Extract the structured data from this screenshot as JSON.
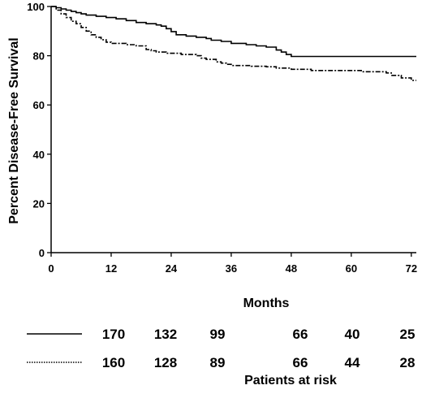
{
  "chart_data": {
    "type": "line",
    "title": "",
    "xlabel": "Months",
    "ylabel": "Percent Disease-Free Survival",
    "xlim": [
      0,
      73
    ],
    "ylim": [
      0,
      100
    ],
    "x_ticks": [
      "0",
      "12",
      "24",
      "36",
      "48",
      "60",
      "72"
    ],
    "y_ticks": [
      "0",
      "20",
      "40",
      "60",
      "80",
      "100"
    ],
    "series": [
      {
        "line_style": "solid",
        "color": "#000000",
        "step": true,
        "points": [
          [
            0,
            100
          ],
          [
            1,
            99.5
          ],
          [
            2,
            99
          ],
          [
            3,
            98.5
          ],
          [
            4,
            98
          ],
          [
            5,
            97.5
          ],
          [
            6,
            97
          ],
          [
            7,
            96.5
          ],
          [
            9,
            96
          ],
          [
            11,
            95.5
          ],
          [
            13,
            95
          ],
          [
            15,
            94.3
          ],
          [
            17,
            93.5
          ],
          [
            19,
            93
          ],
          [
            21,
            92.5
          ],
          [
            22,
            92
          ],
          [
            23,
            91
          ],
          [
            24,
            89.8
          ],
          [
            25,
            88.5
          ],
          [
            27,
            88
          ],
          [
            29,
            87.5
          ],
          [
            31,
            87
          ],
          [
            32,
            86.3
          ],
          [
            34,
            85.8
          ],
          [
            36,
            85
          ],
          [
            39,
            84.5
          ],
          [
            41,
            84
          ],
          [
            43,
            83.5
          ],
          [
            45,
            82.3
          ],
          [
            46,
            81.5
          ],
          [
            47,
            80.5
          ],
          [
            48,
            79.7
          ],
          [
            73,
            79.7
          ]
        ]
      },
      {
        "line_style": "dashed",
        "color": "#000000",
        "step": true,
        "points": [
          [
            0,
            100
          ],
          [
            1,
            98.5
          ],
          [
            2,
            97
          ],
          [
            3,
            95.5
          ],
          [
            4,
            94
          ],
          [
            5,
            93
          ],
          [
            6,
            91.5
          ],
          [
            7,
            90
          ],
          [
            8,
            88.5
          ],
          [
            9,
            87.5
          ],
          [
            10,
            86.5
          ],
          [
            11,
            85.5
          ],
          [
            12,
            85
          ],
          [
            15,
            84.5
          ],
          [
            17,
            84
          ],
          [
            19,
            82.5
          ],
          [
            20,
            82
          ],
          [
            21,
            81.5
          ],
          [
            23,
            81
          ],
          [
            26,
            80.5
          ],
          [
            29,
            80
          ],
          [
            30,
            79
          ],
          [
            31,
            78.5
          ],
          [
            33,
            77.5
          ],
          [
            34,
            77
          ],
          [
            35,
            76.5
          ],
          [
            36,
            76
          ],
          [
            40,
            75.7
          ],
          [
            43,
            75.5
          ],
          [
            45,
            75
          ],
          [
            48,
            74.5
          ],
          [
            52,
            74
          ],
          [
            56,
            74
          ],
          [
            62,
            73.5
          ],
          [
            67,
            73
          ],
          [
            68,
            72
          ],
          [
            70,
            71
          ],
          [
            72,
            70
          ],
          [
            73,
            70
          ]
        ]
      }
    ]
  },
  "risk_table": {
    "caption": "Patients at risk",
    "rows": [
      {
        "style": "solid",
        "counts": [
          "170",
          "132",
          "99",
          "66",
          "40",
          "25"
        ]
      },
      {
        "style": "dotted",
        "counts": [
          "160",
          "128",
          "89",
          "66",
          "44",
          "28"
        ]
      }
    ]
  }
}
